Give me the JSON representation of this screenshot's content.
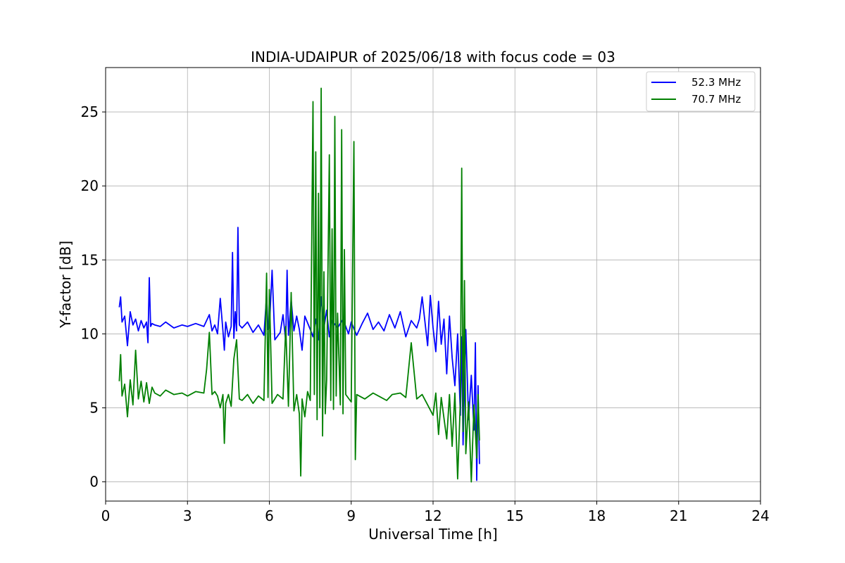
{
  "chart_data": {
    "type": "line",
    "title": "INDIA-UDAIPUR of 2025/06/18 with focus code = 03",
    "xlabel": "Universal Time [h]",
    "ylabel": "Y-factor [dB]",
    "xlim": [
      0,
      24
    ],
    "ylim": [
      -1.3,
      28
    ],
    "xticks": [
      "0",
      "3",
      "6",
      "9",
      "12",
      "15",
      "18",
      "21",
      "24"
    ],
    "yticks": [
      "0",
      "5",
      "10",
      "15",
      "20",
      "25"
    ],
    "grid": true,
    "legend_position": "top-right",
    "series": [
      {
        "name": "52.3 MHz",
        "color": "#0000ff",
        "x": [
          0.5,
          0.55,
          0.6,
          0.7,
          0.8,
          0.9,
          1.0,
          1.1,
          1.2,
          1.3,
          1.4,
          1.5,
          1.55,
          1.6,
          1.65,
          1.7,
          1.8,
          2.0,
          2.2,
          2.5,
          2.8,
          3.0,
          3.3,
          3.6,
          3.8,
          3.9,
          4.0,
          4.1,
          4.2,
          4.3,
          4.35,
          4.4,
          4.5,
          4.6,
          4.65,
          4.7,
          4.75,
          4.8,
          4.85,
          4.9,
          5.0,
          5.2,
          5.4,
          5.6,
          5.8,
          5.9,
          5.95,
          6.0,
          6.1,
          6.2,
          6.4,
          6.5,
          6.6,
          6.65,
          6.7,
          6.8,
          6.9,
          7.0,
          7.1,
          7.2,
          7.3,
          7.5,
          7.6,
          7.7,
          7.8,
          7.9,
          8.0,
          8.1,
          8.2,
          8.3,
          8.5,
          8.7,
          8.9,
          9.0,
          9.2,
          9.4,
          9.6,
          9.8,
          10.0,
          10.2,
          10.4,
          10.6,
          10.8,
          11.0,
          11.2,
          11.4,
          11.5,
          11.6,
          11.8,
          11.9,
          12.0,
          12.1,
          12.2,
          12.3,
          12.4,
          12.5,
          12.6,
          12.7,
          12.8,
          12.9,
          13.0,
          13.05,
          13.1,
          13.2,
          13.3,
          13.4,
          13.5,
          13.55,
          13.6,
          13.65,
          13.7
        ],
        "values": [
          11.8,
          12.5,
          10.8,
          11.2,
          9.2,
          11.5,
          10.6,
          11.0,
          10.2,
          10.9,
          10.4,
          10.8,
          9.4,
          13.8,
          10.5,
          10.7,
          10.6,
          10.5,
          10.8,
          10.4,
          10.6,
          10.5,
          10.7,
          10.5,
          11.3,
          10.2,
          10.6,
          10.0,
          12.4,
          10.2,
          8.9,
          10.8,
          9.8,
          10.5,
          15.5,
          9.7,
          11.5,
          10.2,
          17.2,
          10.6,
          10.4,
          10.8,
          10.1,
          10.6,
          9.9,
          12.6,
          10.3,
          10.4,
          14.3,
          9.6,
          10.1,
          11.3,
          9.5,
          14.3,
          9.9,
          12.3,
          10.2,
          11.2,
          10.3,
          8.9,
          11.2,
          10.3,
          9.8,
          11.0,
          9.6,
          12.5,
          10.4,
          11.6,
          9.8,
          10.9,
          10.4,
          11.0,
          10.0,
          10.8,
          9.9,
          10.7,
          11.4,
          10.3,
          10.8,
          10.2,
          11.3,
          10.4,
          11.5,
          9.8,
          10.9,
          10.4,
          11.0,
          12.5,
          9.2,
          12.6,
          10.4,
          8.8,
          12.2,
          9.3,
          11.0,
          7.3,
          11.2,
          8.4,
          6.5,
          10.0,
          4.5,
          9.8,
          2.5,
          10.3,
          4.2,
          7.2,
          3.5,
          9.4,
          0.1,
          6.5,
          1.2
        ]
      },
      {
        "name": "70.7 MHz",
        "color": "#008000",
        "x": [
          0.5,
          0.55,
          0.6,
          0.7,
          0.8,
          0.9,
          1.0,
          1.1,
          1.2,
          1.3,
          1.4,
          1.5,
          1.6,
          1.7,
          1.8,
          2.0,
          2.2,
          2.5,
          2.8,
          3.0,
          3.3,
          3.6,
          3.7,
          3.8,
          3.9,
          4.0,
          4.1,
          4.2,
          4.3,
          4.35,
          4.4,
          4.5,
          4.6,
          4.7,
          4.8,
          4.9,
          5.0,
          5.2,
          5.4,
          5.6,
          5.8,
          5.9,
          5.95,
          6.0,
          6.1,
          6.3,
          6.5,
          6.6,
          6.7,
          6.8,
          6.9,
          7.0,
          7.1,
          7.15,
          7.2,
          7.3,
          7.4,
          7.5,
          7.6,
          7.65,
          7.7,
          7.75,
          7.8,
          7.85,
          7.9,
          7.95,
          8.0,
          8.05,
          8.1,
          8.2,
          8.25,
          8.3,
          8.35,
          8.4,
          8.45,
          8.5,
          8.6,
          8.65,
          8.7,
          8.75,
          8.8,
          9.0,
          9.1,
          9.15,
          9.2,
          9.5,
          9.8,
          10.0,
          10.3,
          10.5,
          10.8,
          11.0,
          11.2,
          11.4,
          11.6,
          11.8,
          12.0,
          12.1,
          12.2,
          12.3,
          12.5,
          12.6,
          12.7,
          12.8,
          12.9,
          13.0,
          13.05,
          13.1,
          13.15,
          13.2,
          13.3,
          13.4,
          13.5,
          13.6,
          13.65,
          13.7
        ],
        "values": [
          6.8,
          8.6,
          5.8,
          6.6,
          4.4,
          6.9,
          5.2,
          8.9,
          5.6,
          6.8,
          5.4,
          6.7,
          5.3,
          6.4,
          6.0,
          5.8,
          6.2,
          5.9,
          6.0,
          5.8,
          6.1,
          6.0,
          7.6,
          10.1,
          5.9,
          6.1,
          5.8,
          5.0,
          5.9,
          2.6,
          5.3,
          5.9,
          5.1,
          8.3,
          9.6,
          5.6,
          5.5,
          5.9,
          5.3,
          5.8,
          5.5,
          14.1,
          5.7,
          13.0,
          5.3,
          5.9,
          5.6,
          10.5,
          5.1,
          12.8,
          4.8,
          5.9,
          4.6,
          0.4,
          5.6,
          4.4,
          6.1,
          5.5,
          25.7,
          5.9,
          22.3,
          4.2,
          19.5,
          5.0,
          26.6,
          3.1,
          14.2,
          4.6,
          6.9,
          22.1,
          5.5,
          17.1,
          4.9,
          24.7,
          5.8,
          11.4,
          5.2,
          23.8,
          4.6,
          15.7,
          5.9,
          5.4,
          23.0,
          1.5,
          5.9,
          5.6,
          6.0,
          5.8,
          5.5,
          5.9,
          6.0,
          5.7,
          9.4,
          5.6,
          5.9,
          5.2,
          4.5,
          6.0,
          3.2,
          5.7,
          2.9,
          5.9,
          2.4,
          6.0,
          0.2,
          5.5,
          21.2,
          3.4,
          13.6,
          1.9,
          5.4,
          0.0,
          5.2,
          1.6,
          5.9,
          2.8
        ]
      }
    ]
  }
}
